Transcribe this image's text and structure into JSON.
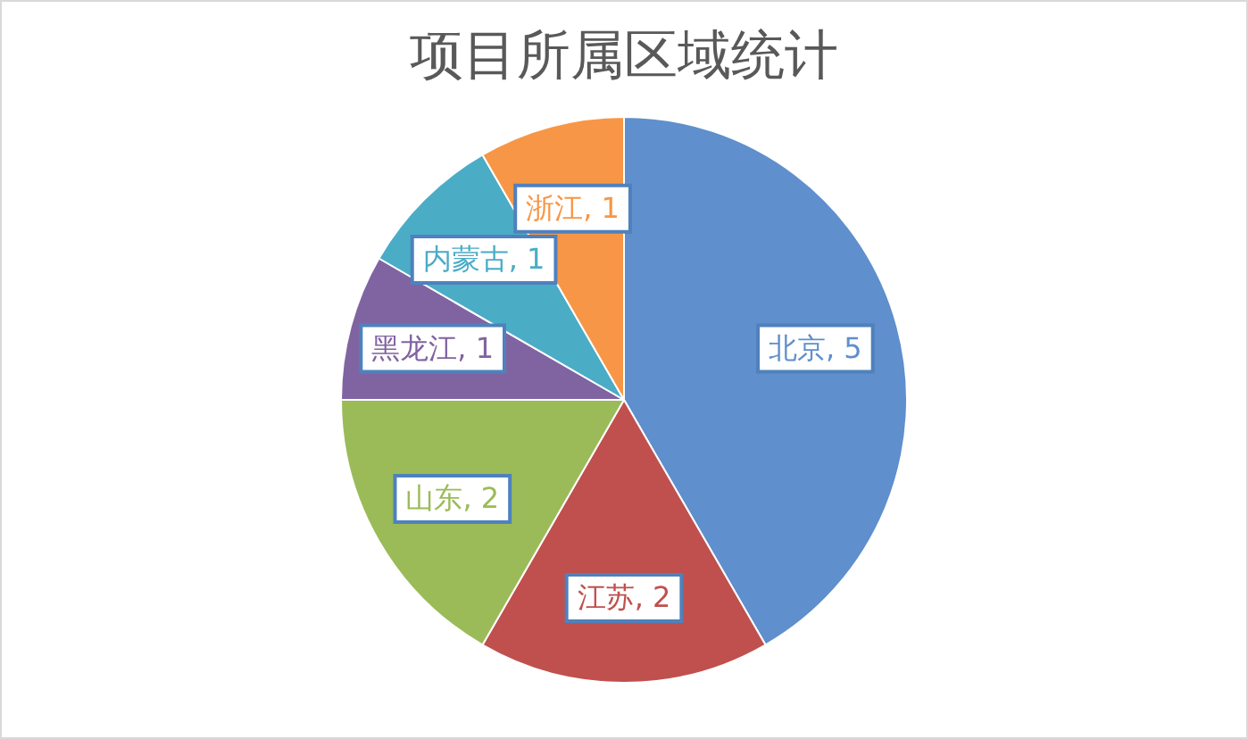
{
  "chart_data": {
    "type": "pie",
    "title": "项目所属区域统计",
    "categories": [
      "北京",
      "江苏",
      "山东",
      "黑龙江",
      "内蒙古",
      "浙江"
    ],
    "values": [
      5,
      2,
      2,
      1,
      1,
      1
    ],
    "value_labels": [
      ", 5",
      ", 2",
      ", 2",
      ", 1",
      ", 1",
      ", 1"
    ],
    "colors": [
      "#5f8fcc",
      "#c0504d",
      "#9bbb59",
      "#8064a2",
      "#4bacc6",
      "#f79646"
    ],
    "legend": false
  }
}
